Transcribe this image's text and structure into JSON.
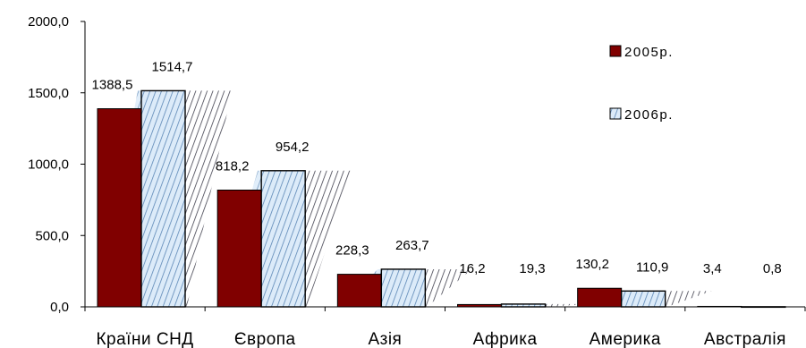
{
  "chart_data": {
    "type": "bar",
    "categories": [
      "Країни СНД",
      "Європа",
      "Азія",
      "Африка",
      "Америка",
      "Австралія"
    ],
    "series": [
      {
        "name": "2005р.",
        "values": [
          1388.5,
          818.2,
          228.3,
          16.2,
          130.2,
          3.4
        ],
        "labels": [
          "1388,5",
          "818,2",
          "228,3",
          "16,2",
          "130,2",
          "3,4"
        ],
        "color": "#800000"
      },
      {
        "name": "2006р.",
        "values": [
          1514.7,
          954.2,
          263.7,
          19.3,
          110.9,
          0.8
        ],
        "labels": [
          "1514,7",
          "954,2",
          "263,7",
          "19,3",
          "110,9",
          "0,8"
        ],
        "color": "#cfe3f7",
        "pattern": "diagonal-hatch"
      }
    ],
    "ylim": [
      0,
      2000
    ],
    "yticks": [
      0,
      500,
      1000,
      1500,
      2000
    ],
    "ytick_labels": [
      "0,0",
      "500,0",
      "1000,0",
      "1500,0",
      "2000,0"
    ],
    "legend": "top-right",
    "grid": false,
    "title": "",
    "xlabel": "",
    "ylabel": ""
  }
}
